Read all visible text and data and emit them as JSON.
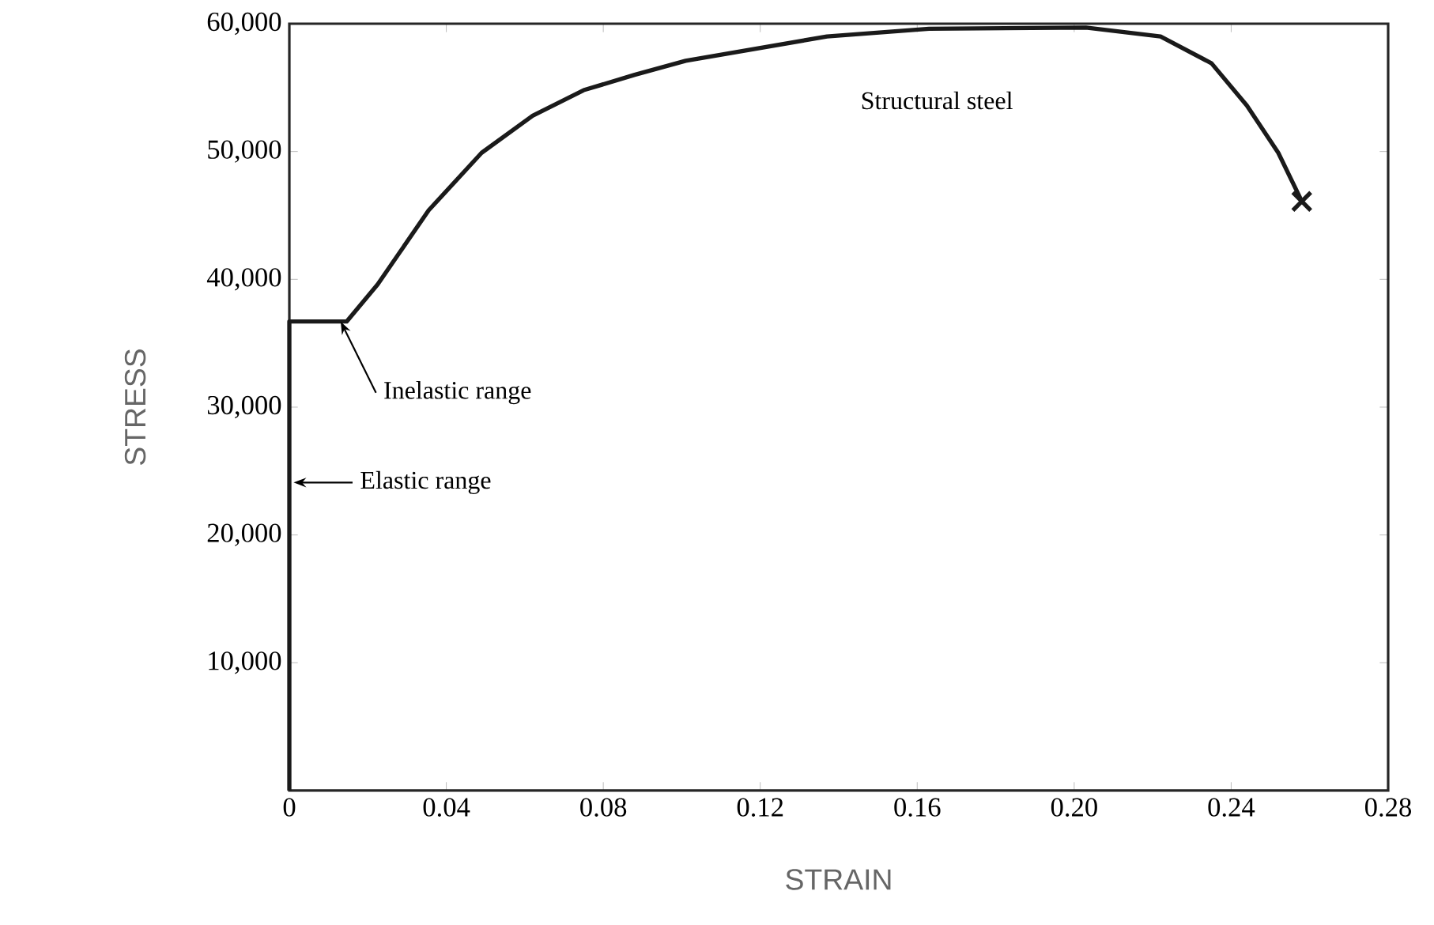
{
  "chart_data": {
    "type": "line",
    "xlabel": "STRAIN",
    "ylabel": "STRESS",
    "xlim": [
      0,
      0.28
    ],
    "ylim": [
      0,
      60000
    ],
    "xticks": [
      0,
      0.04,
      0.08,
      0.12,
      0.16,
      {
        "value": 0.2,
        "label": "0.20"
      },
      0.24,
      0.28
    ],
    "yticks": [
      {
        "value": 10000,
        "label": "10,000"
      },
      {
        "value": 20000,
        "label": "20,000"
      },
      {
        "value": 30000,
        "label": "30,000"
      },
      {
        "value": 40000,
        "label": "40,000"
      },
      {
        "value": 50000,
        "label": "50,000"
      },
      {
        "value": 60000,
        "label": "60,000"
      }
    ],
    "grid": false,
    "line_style": "solid",
    "marker": "none",
    "series": [
      {
        "name": "Structural steel",
        "color": "#1a1a1a",
        "x": [
          0,
          0,
          0.003,
          0.0146,
          0.0225,
          0.0355,
          0.049,
          0.062,
          0.075,
          0.088,
          0.101,
          0.137,
          0.163,
          0.203,
          0.222,
          0.235,
          0.244,
          0.252,
          0.258
        ],
        "values": [
          0,
          36700,
          36700,
          36700,
          39600,
          45400,
          49900,
          52800,
          54800,
          56000,
          57100,
          59000,
          59600,
          59700,
          59000,
          56900,
          53600,
          49900,
          46100
        ]
      },
      {
        "type": "scatter",
        "marker": "cross",
        "color": "#1a1a1a",
        "x": [
          0.258
        ],
        "values": [
          46100
        ]
      }
    ],
    "annotations": [
      {
        "text": "Inelastic range",
        "x": 0.012,
        "y": 36700
      },
      {
        "text": "Elastic range",
        "x": 0,
        "y": 24100
      }
    ]
  }
}
